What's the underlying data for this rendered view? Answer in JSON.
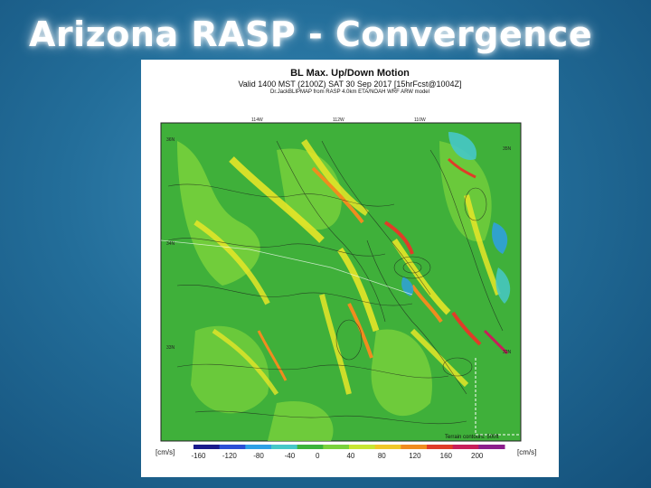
{
  "slide": {
    "title": "Arizona RASP - Convergence"
  },
  "figure": {
    "title": "BL Max. Up/Down Motion",
    "valid_line": "Valid 1400 MST (2100Z) SAT 30 Sep 2017 [15hrFcst@1004Z]",
    "model_line": "Dr.JackBLIPMAP from RASP 4.0km ETA/NOAH WRF ARW model",
    "lon_labels": [
      "114W",
      "112W",
      "110W"
    ],
    "lat_labels": [
      "36N",
      "35N",
      "34N",
      "33N",
      "32N"
    ],
    "terrain_note": "Terrain contours: 500ft",
    "colorbar": {
      "unit": "[cm/s]",
      "ticks": [
        "-160",
        "-120",
        "-80",
        "-40",
        "0",
        "40",
        "80",
        "120",
        "160",
        "200"
      ],
      "colors": [
        "#1a1a8c",
        "#2a4fd6",
        "#2ea0e6",
        "#46c8c8",
        "#3cb43c",
        "#7ad23c",
        "#c8e632",
        "#f0c828",
        "#f08c1e",
        "#e03c28",
        "#c81e5a",
        "#8c1e8c"
      ]
    }
  }
}
